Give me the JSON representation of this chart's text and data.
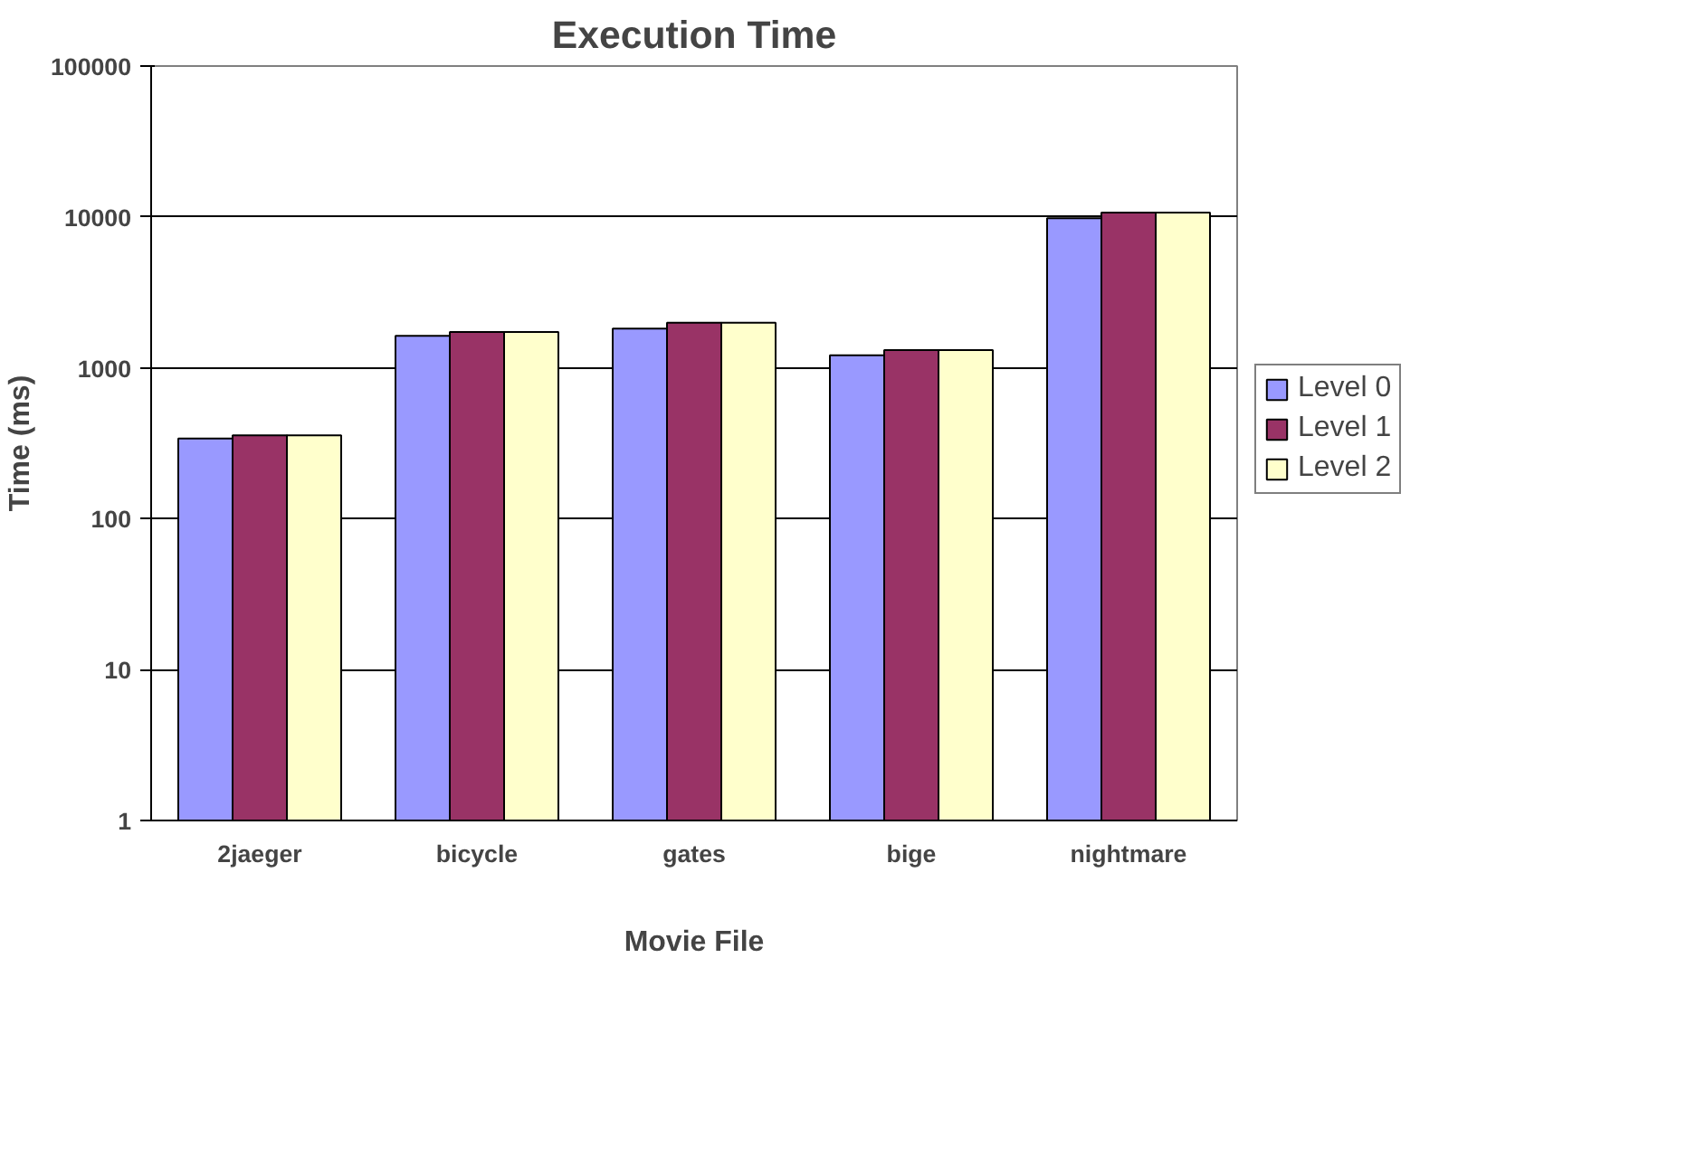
{
  "chart_data": {
    "type": "bar",
    "title": "Execution Time",
    "xlabel": "Movie File",
    "ylabel": "Time (ms)",
    "categories": [
      "2jaeger",
      "bicycle",
      "gates",
      "bige",
      "nightmare"
    ],
    "series": [
      {
        "name": "Level 0",
        "color": "#9999ff",
        "values": [
          340,
          1630,
          1820,
          1210,
          9800
        ]
      },
      {
        "name": "Level 1",
        "color": "#993366",
        "values": [
          357,
          1730,
          1990,
          1310,
          10700
        ]
      },
      {
        "name": "Level 2",
        "color": "#ffffcc",
        "values": [
          357,
          1730,
          1990,
          1310,
          10700
        ]
      }
    ],
    "log": "y",
    "ylim": [
      1,
      100000
    ],
    "yticks": [
      1,
      10,
      100,
      1000,
      10000,
      100000
    ],
    "grid": "y",
    "legend": "right"
  }
}
